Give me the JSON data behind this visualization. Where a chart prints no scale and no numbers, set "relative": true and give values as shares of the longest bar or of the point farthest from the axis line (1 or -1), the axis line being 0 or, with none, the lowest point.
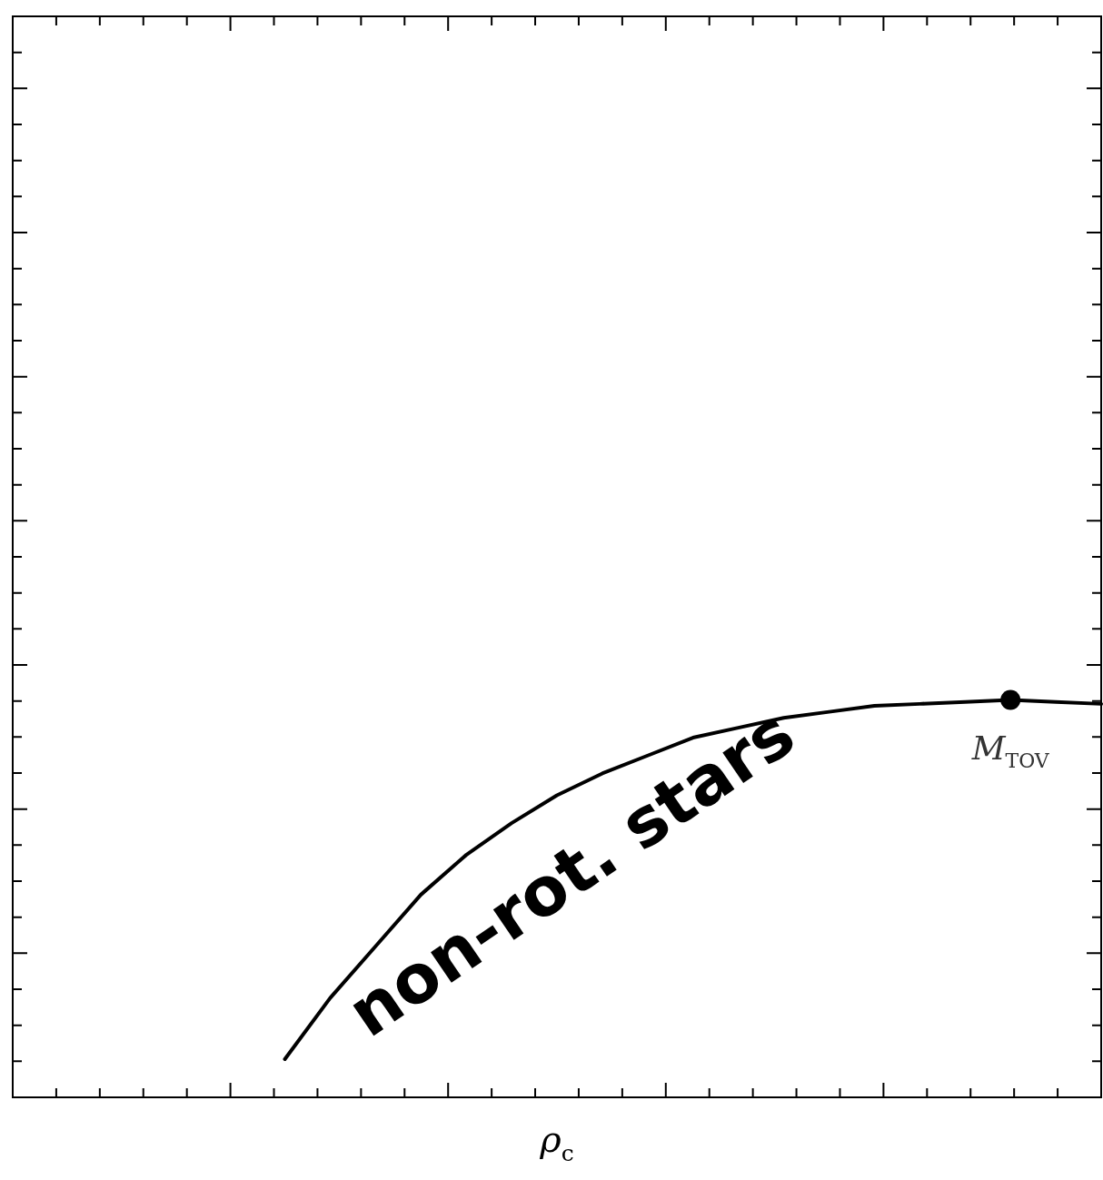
{
  "chart_data": {
    "type": "line",
    "relative": true,
    "xlabel": "ρ$_{c}$",
    "categories": [
      null,
      null,
      null,
      null,
      null,
      null,
      null,
      null,
      null,
      null,
      null,
      null,
      null,
      null,
      null,
      null,
      null,
      null,
      null,
      null,
      null,
      null,
      null,
      null,
      null
    ],
    "series": [
      {
        "color": "#000000",
        "values": [
          null,
          null,
          null,
          null,
          null,
          null,
          0.096,
          0.25,
          0.38,
          0.51,
          0.61,
          0.69,
          0.76,
          0.815,
          0.86,
          0.905,
          0.93,
          0.955,
          0.97,
          0.985,
          0.99,
          0.995,
          1,
          0.995,
          0.99
        ]
      }
    ],
    "annotations": [
      "non-rot. stars",
      {
        "text": "M$_{TOV}$",
        "y": 1
      }
    ],
    "grid": false,
    "legend": false,
    "tick_labels": false,
    "marker": "none",
    "line_style": "solid"
  }
}
